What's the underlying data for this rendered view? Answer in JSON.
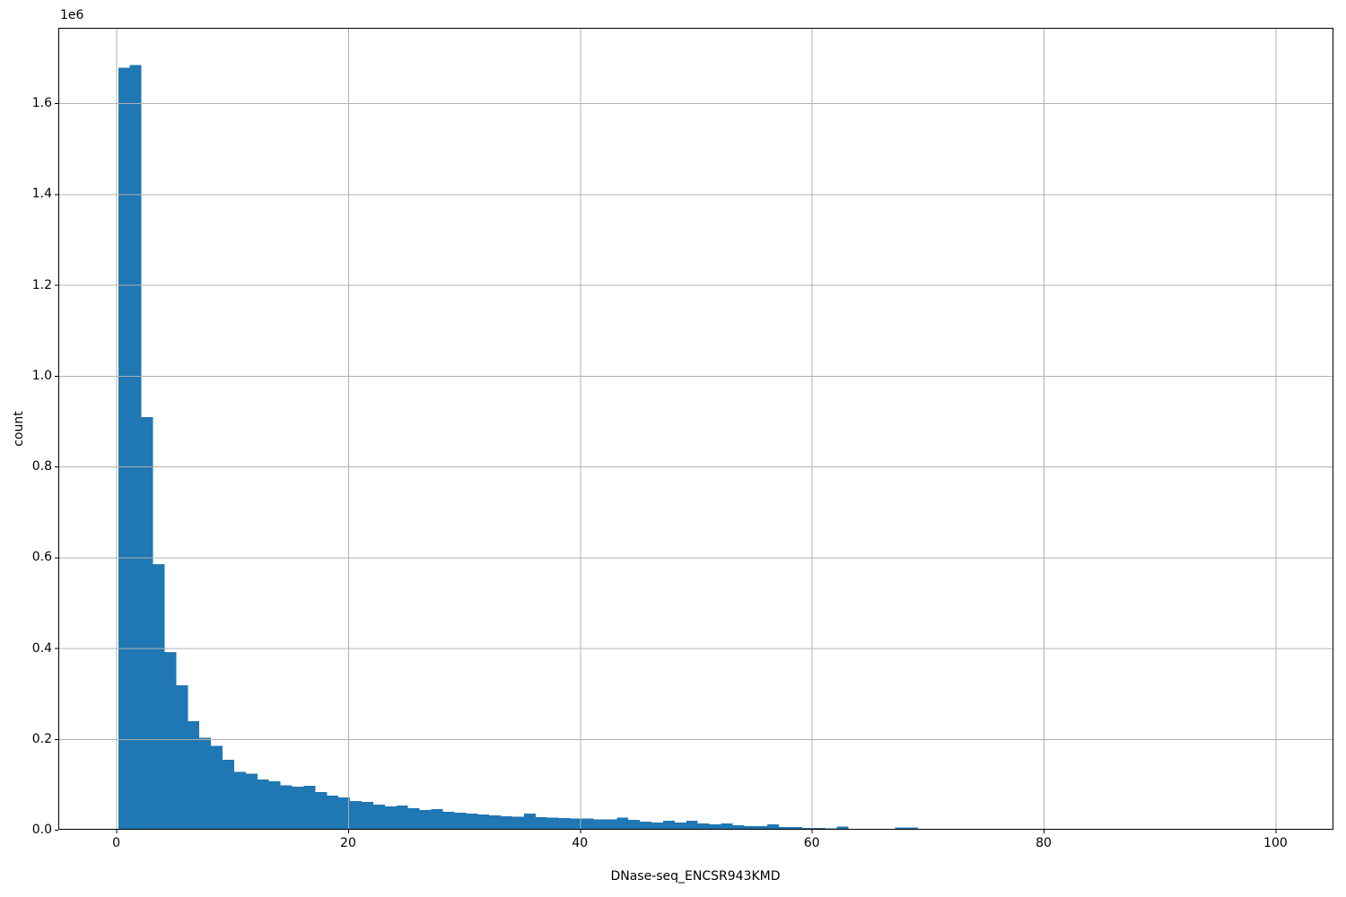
{
  "figure": {
    "background": "#ffffff",
    "offset_text": "1e6",
    "ylabel": "count",
    "xlabel": "DNase-seq_ENCSR943KMD"
  },
  "chart_data": {
    "type": "bar",
    "subtype": "histogram",
    "title": "",
    "xlabel": "DNase-seq_ENCSR943KMD",
    "ylabel": "count",
    "y_offset_label": "1e6",
    "grid": true,
    "legend": false,
    "bar_color": "#1f77b4",
    "grid_color": "#b0b0b0",
    "spine_color": "#000000",
    "xlim": [
      -5,
      105
    ],
    "ylim": [
      0,
      1766000
    ],
    "xticks": [
      0,
      20,
      40,
      60,
      80,
      100
    ],
    "xtick_labels": [
      "0",
      "20",
      "40",
      "60",
      "80",
      "100"
    ],
    "yticks": [
      0,
      200000,
      400000,
      600000,
      800000,
      1000000,
      1200000,
      1400000,
      1600000
    ],
    "ytick_labels": [
      "0.0",
      "0.2",
      "0.4",
      "0.6",
      "0.8",
      "1.0",
      "1.2",
      "1.4",
      "1.6"
    ],
    "bin_start": 0.17,
    "bin_width": 1.0,
    "counts": [
      1678000,
      1684000,
      909000,
      585000,
      391000,
      318000,
      239000,
      202000,
      185000,
      154000,
      127000,
      123000,
      111000,
      107000,
      98000,
      95000,
      97000,
      83000,
      75000,
      71000,
      63000,
      61000,
      55000,
      51000,
      53000,
      47000,
      43000,
      45000,
      40000,
      38000,
      36000,
      34000,
      32000,
      30000,
      29000,
      36000,
      28000,
      27000,
      26000,
      25000,
      25000,
      23000,
      23000,
      27000,
      22000,
      18000,
      16000,
      20000,
      16000,
      20000,
      14000,
      12000,
      14000,
      10000,
      8000,
      8000,
      12000,
      6000,
      6000,
      4000,
      4000,
      3000,
      7000,
      2000,
      2000,
      2000,
      2000,
      5000,
      5000
    ]
  }
}
